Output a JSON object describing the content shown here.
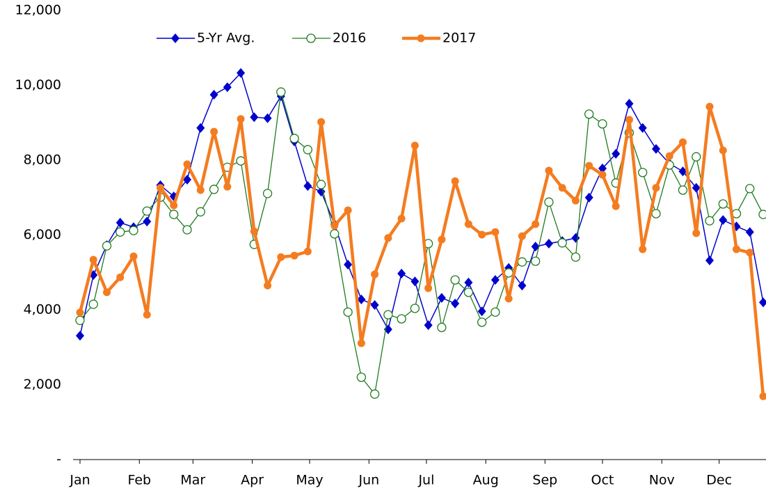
{
  "chart_data": {
    "type": "line",
    "x": [
      0,
      1,
      2,
      3,
      4,
      5,
      6,
      7,
      8,
      9,
      10,
      11,
      12,
      13,
      14,
      15,
      16,
      17,
      18,
      19,
      20,
      21,
      22,
      23,
      24,
      25,
      26,
      27,
      28,
      29,
      30,
      31,
      32,
      33,
      34,
      35,
      36,
      37,
      38,
      39,
      40,
      41,
      42,
      43,
      44,
      45,
      46,
      47,
      48,
      49,
      50,
      51
    ],
    "xlim": [
      0,
      51
    ],
    "xticks": [
      {
        "value": 0,
        "label": "Jan"
      },
      {
        "value": 4.43,
        "label": "Feb"
      },
      {
        "value": 8.43,
        "label": "Mar"
      },
      {
        "value": 12.86,
        "label": "Apr"
      },
      {
        "value": 17.14,
        "label": "May"
      },
      {
        "value": 21.57,
        "label": "Jun"
      },
      {
        "value": 25.86,
        "label": "Jul"
      },
      {
        "value": 30.29,
        "label": "Aug"
      },
      {
        "value": 34.71,
        "label": "Sep"
      },
      {
        "value": 39,
        "label": "Oct"
      },
      {
        "value": 43.43,
        "label": "Nov"
      },
      {
        "value": 47.71,
        "label": "Dec"
      }
    ],
    "ylim": [
      0,
      12000
    ],
    "yticks": [
      {
        "value": 0,
        "label": "-"
      },
      {
        "value": 2000,
        "label": "2,000"
      },
      {
        "value": 4000,
        "label": "4,000"
      },
      {
        "value": 6000,
        "label": "6,000"
      },
      {
        "value": 8000,
        "label": "8,000"
      },
      {
        "value": 10000,
        "label": "10,000"
      },
      {
        "value": 12000,
        "label": "12,000"
      }
    ],
    "grid": false,
    "legend": "top",
    "series": [
      {
        "name": "5-Yr Avg.",
        "color": "#0000cc",
        "marker": "diamond",
        "values": [
          3310,
          4930,
          5730,
          6330,
          6210,
          6360,
          7330,
          7030,
          7480,
          8860,
          9750,
          9950,
          10330,
          9150,
          9120,
          9710,
          8500,
          7310,
          7160,
          6290,
          5210,
          4280,
          4130,
          3480,
          4970,
          4760,
          3590,
          4320,
          4170,
          4730,
          3960,
          4800,
          5120,
          4650,
          5690,
          5770,
          5840,
          5920,
          7000,
          7780,
          8170,
          9510,
          8860,
          8300,
          7910,
          7700,
          7260,
          5320,
          6400,
          6230,
          6080,
          4200
        ]
      },
      {
        "name": "2016",
        "color": "#1e7b1e",
        "marker": "open-circle",
        "values": [
          3720,
          4150,
          5710,
          6080,
          6120,
          6640,
          7010,
          6550,
          6140,
          6620,
          7220,
          7810,
          7980,
          5750,
          7110,
          9820,
          8580,
          8280,
          7350,
          6030,
          3940,
          2200,
          1750,
          3870,
          3760,
          4040,
          5770,
          3530,
          4800,
          4470,
          3670,
          3940,
          4990,
          5280,
          5300,
          6880,
          5790,
          5410,
          9230,
          8970,
          7390,
          8730,
          7670,
          6570,
          7870,
          7200,
          8090,
          6380,
          6830,
          6570,
          7240,
          6550
        ]
      },
      {
        "name": "2017",
        "color": "#f47c20",
        "marker": "circle",
        "values": [
          3930,
          5340,
          4470,
          4870,
          5430,
          3870,
          7260,
          6790,
          7890,
          7200,
          8760,
          7290,
          9100,
          6100,
          4650,
          5410,
          5450,
          5560,
          9020,
          6250,
          6660,
          3110,
          4950,
          5920,
          6440,
          8390,
          4580,
          5880,
          7440,
          6290,
          6010,
          6080,
          4300,
          5970,
          6290,
          7720,
          7260,
          6920,
          7850,
          7610,
          6770,
          9080,
          5620,
          7260,
          8110,
          8480,
          6050,
          9430,
          8260,
          5620,
          5530,
          1690
        ]
      }
    ]
  }
}
